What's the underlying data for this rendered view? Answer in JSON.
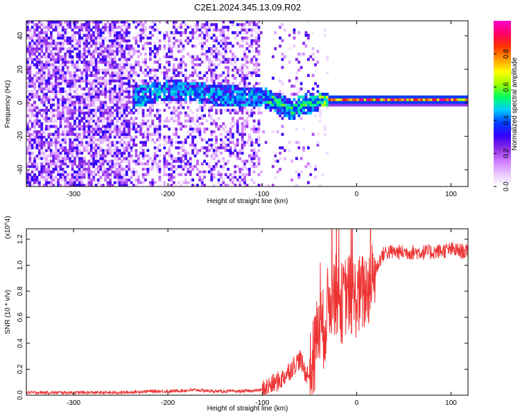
{
  "title": "C2E1.2024.345.13.09.R02",
  "chart_data": [
    {
      "type": "heatmap",
      "xlabel": "Height of straight line (km)",
      "ylabel": "Frequency (Hz)",
      "xlim": [
        -350,
        118
      ],
      "ylim": [
        -50,
        49
      ],
      "x_ticks": [
        -300,
        -200,
        -100,
        0,
        100
      ],
      "y_ticks": [
        -40,
        -20,
        0,
        20,
        40
      ],
      "colorbar": {
        "label": "Normalized spectral amplitude",
        "range": [
          0,
          1
        ],
        "ticks": [
          "0.0",
          "0.2",
          "0.4",
          "0.6",
          "0.8"
        ],
        "colors": [
          "#ffffff",
          "#e9c6ff",
          "#cf7dff",
          "#8a2be2",
          "#3300ff",
          "#0040ff",
          "#00ccff",
          "#00ff66",
          "#9aff00",
          "#ffff00",
          "#ff9900",
          "#ff3300",
          "#ff0066",
          "#ff00cc"
        ]
      },
      "series": [
        {
          "x": [
            -350,
            -300,
            -240,
            -200,
            -175,
            -150,
            -120,
            -100,
            -90,
            -80,
            -70,
            -60,
            -50,
            -40,
            -30,
            -20,
            0,
            50,
            100,
            118
          ],
          "values": [
            2,
            2,
            2,
            7,
            6,
            4,
            3,
            3,
            0,
            -2,
            -5,
            -2,
            -1,
            1,
            1,
            1,
            1,
            1,
            1,
            1
          ]
        }
      ]
    },
    {
      "type": "line",
      "xlabel": "Height of straight line (km)",
      "ylabel": "SNR (10 * v/v)",
      "y_multiplier": "(x10^4)",
      "xlim": [
        -350,
        118
      ],
      "ylim": [
        0,
        1.28
      ],
      "x_ticks": [
        -300,
        -200,
        -100,
        0,
        100
      ],
      "y_ticks": [
        "0.0",
        "0.2",
        "0.4",
        "0.6",
        "0.8",
        "1.0",
        "1.2"
      ],
      "color": "#ee3333",
      "series": [
        {
          "x": [
            -350,
            -300,
            -250,
            -220,
            -200,
            -170,
            -150,
            -120,
            -100,
            -90,
            -80,
            -70,
            -60,
            -55,
            -50,
            -45,
            -40,
            -35,
            -30,
            -25,
            -20,
            -15,
            -10,
            -5,
            0,
            10,
            20,
            25,
            30,
            40,
            60,
            80,
            100,
            118
          ],
          "values": [
            0.02,
            0.02,
            0.02,
            0.03,
            0.03,
            0.04,
            0.03,
            0.03,
            0.04,
            0.08,
            0.12,
            0.2,
            0.28,
            0.18,
            0.15,
            0.3,
            0.55,
            0.5,
            0.7,
            0.8,
            0.75,
            0.7,
            0.8,
            0.75,
            0.75,
            0.8,
            0.95,
            1.05,
            1.1,
            1.1,
            1.1,
            1.1,
            1.12,
            1.1
          ]
        }
      ]
    }
  ]
}
